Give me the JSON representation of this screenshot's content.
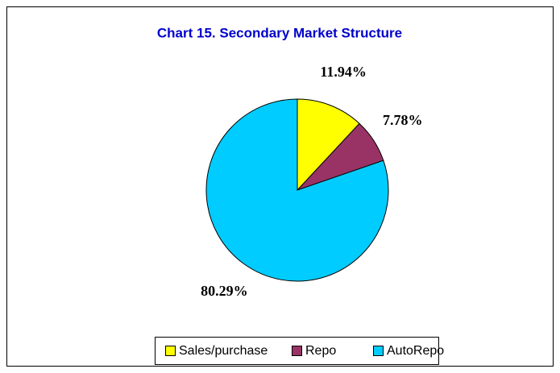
{
  "chart_data": {
    "type": "pie",
    "title": "Chart 15. Secondary Market Structure",
    "categories": [
      "Sales/purchase",
      "Repo",
      "AutoRepo"
    ],
    "values": [
      11.94,
      7.78,
      80.29
    ],
    "value_labels": [
      "11.94%",
      "7.78%",
      "80.29%"
    ],
    "colors": [
      "#ffff00",
      "#993366",
      "#00ccff"
    ],
    "legend": "bottom"
  }
}
